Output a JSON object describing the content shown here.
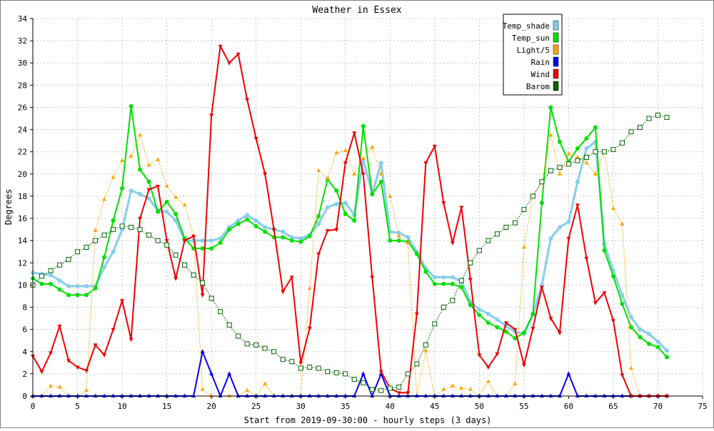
{
  "chart_data": {
    "type": "line",
    "title": "Weather in Essex",
    "xlabel": "Start from 2019-09-30:00 - hourly steps (3 days)",
    "ylabel": "Degrees",
    "xlim": [
      0,
      75
    ],
    "ylim": [
      0,
      34
    ],
    "xticks": [
      0,
      5,
      10,
      15,
      20,
      25,
      30,
      35,
      40,
      45,
      50,
      55,
      60,
      65,
      70,
      75
    ],
    "yticks": [
      0,
      2,
      4,
      6,
      8,
      10,
      12,
      14,
      16,
      18,
      20,
      22,
      24,
      26,
      28,
      30,
      32,
      34
    ],
    "grid": true,
    "legend_position": "top-right",
    "series": [
      {
        "name": "Temp_shade",
        "color": "#87ceeb",
        "marker": "dot",
        "line": "solid",
        "values": [
          11.1,
          11.0,
          10.9,
          10.4,
          9.9,
          9.9,
          9.9,
          9.9,
          11.6,
          13.0,
          15.0,
          18.5,
          18.2,
          17.8,
          16.7,
          16.6,
          15.8,
          14.0,
          14.0,
          14.0,
          14.0,
          14.2,
          15.2,
          15.8,
          16.3,
          15.8,
          15.2,
          15.0,
          14.8,
          14.3,
          14.2,
          14.5,
          15.5,
          17.0,
          17.3,
          17.4,
          16.3,
          21.3,
          18.2,
          21.0,
          14.8,
          14.7,
          14.3,
          13.0,
          11.5,
          10.7,
          10.7,
          10.7,
          10.3,
          8.5,
          7.8,
          7.4,
          6.9,
          6.3,
          5.8,
          5.6,
          7.3,
          10.0,
          14.2,
          15.2,
          15.7,
          19.3,
          22.3,
          22.9,
          13.7,
          11.3,
          9.1,
          7.1,
          6.0,
          5.6,
          4.9,
          4.1
        ]
      },
      {
        "name": "Temp_sun",
        "color": "#00e000",
        "marker": "dot",
        "line": "solid",
        "values": [
          10.6,
          10.1,
          10.1,
          9.6,
          9.1,
          9.1,
          9.1,
          9.7,
          12.5,
          15.8,
          18.7,
          26.1,
          20.4,
          19.3,
          16.6,
          17.5,
          16.4,
          14.2,
          13.3,
          13.3,
          13.3,
          13.8,
          15.0,
          15.5,
          15.9,
          15.3,
          14.8,
          14.3,
          14.3,
          14.0,
          13.9,
          14.4,
          16.2,
          19.5,
          18.5,
          16.4,
          15.8,
          24.3,
          18.2,
          19.3,
          14.0,
          14.0,
          13.9,
          12.8,
          11.2,
          10.1,
          10.1,
          10.1,
          9.8,
          8.2,
          7.3,
          6.6,
          6.2,
          5.8,
          5.2,
          5.7,
          7.4,
          17.4,
          26.0,
          22.9,
          21.1,
          22.3,
          23.2,
          24.2,
          13.1,
          10.8,
          8.3,
          6.2,
          5.3,
          4.7,
          4.4,
          3.5
        ]
      },
      {
        "name": "Light/5",
        "color": "#ffa500",
        "marker": "triangle",
        "line": "dotted",
        "values": [
          0,
          0,
          0.9,
          0.8,
          0,
          0,
          0.5,
          14.9,
          17.7,
          19.7,
          21.2,
          21.6,
          23.5,
          20.8,
          21.3,
          18.9,
          17.9,
          17.2,
          14.4,
          0.6,
          0,
          0,
          0,
          0,
          0.5,
          0,
          1.1,
          0,
          0,
          0,
          0,
          9.7,
          20.3,
          19.6,
          21.9,
          22.1,
          20.0,
          21.4,
          22.4,
          20.0,
          18.0,
          14.4,
          13.8,
          0,
          4.1,
          0,
          0.6,
          0.9,
          0.7,
          0.6,
          0,
          1.3,
          0,
          0,
          1.1,
          13.4,
          18.0,
          19.3,
          23.5,
          20.0,
          21.8,
          21.5,
          21.0,
          20.0,
          22.0,
          16.9,
          15.5,
          2.5,
          0,
          0,
          0,
          0
        ]
      },
      {
        "name": "Rain",
        "color": "#0000ee",
        "marker": "triangle",
        "line": "solid",
        "values": [
          0,
          0,
          0,
          0,
          0,
          0,
          0,
          0,
          0,
          0,
          0,
          0,
          0,
          0,
          0,
          0,
          0,
          0,
          0,
          4.0,
          2.0,
          0,
          2.0,
          0,
          0,
          0,
          0,
          0,
          0,
          0,
          0,
          0,
          0,
          0,
          0,
          0,
          0,
          2.0,
          0,
          2.0,
          0,
          0,
          0,
          0,
          0,
          0,
          0,
          0,
          0,
          0,
          0,
          0,
          0,
          0,
          0,
          0,
          0,
          0,
          0,
          0,
          2.0,
          0,
          0,
          0,
          0,
          0,
          0,
          0,
          0,
          0,
          0,
          0
        ]
      },
      {
        "name": "Wind",
        "color": "#ee0000",
        "marker": "triangle-down",
        "line": "solid",
        "values": [
          3.6,
          2.2,
          3.9,
          6.3,
          3.2,
          2.6,
          2.3,
          4.6,
          3.7,
          6.0,
          8.6,
          5.1,
          16.0,
          18.6,
          18.9,
          14.0,
          10.6,
          14.0,
          14.4,
          9.1,
          25.3,
          31.5,
          30.0,
          30.8,
          26.7,
          23.2,
          20.0,
          15.0,
          9.4,
          10.7,
          3.0,
          6.1,
          12.8,
          14.9,
          15.0,
          21.0,
          23.7,
          20.0,
          10.7,
          2.2,
          0.7,
          0.3,
          0.3,
          7.4,
          21.0,
          22.5,
          17.4,
          13.8,
          17.0,
          10.5,
          3.7,
          2.6,
          3.8,
          6.6,
          6.0,
          2.8,
          6.1,
          9.8,
          7.0,
          5.7,
          14.2,
          17.2,
          12.4,
          8.4,
          9.3,
          6.8,
          1.9,
          0,
          0,
          0,
          0,
          0
        ]
      },
      {
        "name": "Barom",
        "color": "#006400",
        "marker": "square",
        "line": "dotted",
        "values": [
          10.0,
          10.8,
          11.3,
          11.8,
          12.3,
          13.0,
          13.4,
          14.0,
          14.5,
          15.0,
          15.3,
          15.2,
          15.0,
          14.5,
          14.0,
          13.6,
          12.7,
          11.8,
          10.9,
          10.2,
          8.8,
          7.6,
          6.4,
          5.4,
          4.7,
          4.6,
          4.3,
          4.0,
          3.3,
          3.1,
          2.5,
          2.6,
          2.5,
          2.2,
          2.1,
          2.0,
          1.5,
          1.2,
          0.6,
          0.5,
          0.7,
          0.8,
          2.0,
          2.9,
          4.6,
          6.5,
          8.0,
          8.6,
          10.4,
          12.0,
          13.1,
          14.0,
          14.6,
          15.2,
          15.6,
          16.8,
          18.0,
          19.3,
          20.3,
          20.6,
          20.9,
          21.2,
          21.5,
          22.0,
          22.0,
          22.2,
          22.8,
          23.8,
          24.2,
          25.0,
          25.3,
          25.1
        ]
      }
    ]
  }
}
